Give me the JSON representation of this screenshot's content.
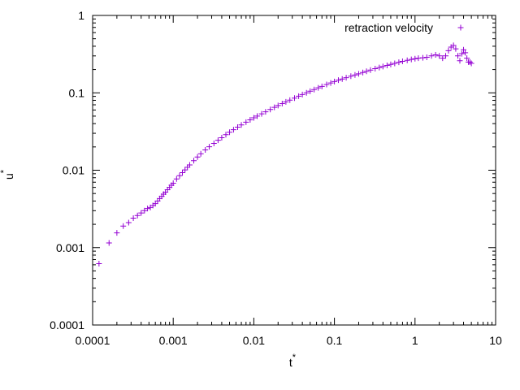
{
  "chart_data": {
    "type": "scatter",
    "title": "",
    "xlabel": "t",
    "xlabel_sup": "*",
    "ylabel": "u",
    "ylabel_sup": "*",
    "xscale": "log",
    "yscale": "log",
    "xlim": [
      0.0001,
      10
    ],
    "ylim": [
      0.0001,
      1
    ],
    "grid": false,
    "legend_position": "top-right",
    "x_ticks": [
      0.0001,
      0.001,
      0.01,
      0.1,
      1,
      10
    ],
    "x_tick_labels": [
      "0.0001",
      "0.001",
      "0.01",
      "0.1",
      "1",
      "10"
    ],
    "y_ticks": [
      0.0001,
      0.001,
      0.01,
      0.1,
      1
    ],
    "y_tick_labels": [
      "0.0001",
      "0.001",
      "0.01",
      "0.1",
      "1"
    ],
    "series": [
      {
        "name": "retraction velocity",
        "color": "#9400d3",
        "marker": "plus",
        "points": [
          [
            0.00012,
            0.00062
          ],
          [
            0.00016,
            0.00115
          ],
          [
            0.0002,
            0.00155
          ],
          [
            0.00024,
            0.0019
          ],
          [
            0.00028,
            0.0021
          ],
          [
            0.00032,
            0.0024
          ],
          [
            0.00036,
            0.0026
          ],
          [
            0.0004,
            0.0028
          ],
          [
            0.00044,
            0.003
          ],
          [
            0.00048,
            0.0032
          ],
          [
            0.00052,
            0.0033
          ],
          [
            0.00056,
            0.0035
          ],
          [
            0.0006,
            0.0037
          ],
          [
            0.00064,
            0.004
          ],
          [
            0.00068,
            0.0043
          ],
          [
            0.00072,
            0.0046
          ],
          [
            0.00076,
            0.0049
          ],
          [
            0.0008,
            0.0052
          ],
          [
            0.00085,
            0.0056
          ],
          [
            0.0009,
            0.006
          ],
          [
            0.00095,
            0.0064
          ],
          [
            0.001,
            0.0068
          ],
          [
            0.0011,
            0.0077
          ],
          [
            0.0012,
            0.0085
          ],
          [
            0.0013,
            0.0093
          ],
          [
            0.0014,
            0.0101
          ],
          [
            0.0015,
            0.0109
          ],
          [
            0.0016,
            0.0117
          ],
          [
            0.0018,
            0.0133
          ],
          [
            0.002,
            0.0148
          ],
          [
            0.0022,
            0.0163
          ],
          [
            0.0025,
            0.0183
          ],
          [
            0.0028,
            0.0201
          ],
          [
            0.0032,
            0.0222
          ],
          [
            0.0036,
            0.0244
          ],
          [
            0.004,
            0.0263
          ],
          [
            0.0045,
            0.0288
          ],
          [
            0.005,
            0.031
          ],
          [
            0.0056,
            0.0334
          ],
          [
            0.0063,
            0.036
          ],
          [
            0.007,
            0.0385
          ],
          [
            0.008,
            0.0418
          ],
          [
            0.009,
            0.0447
          ],
          [
            0.01,
            0.0475
          ],
          [
            0.011,
            0.05
          ],
          [
            0.0125,
            0.0535
          ],
          [
            0.014,
            0.0568
          ],
          [
            0.016,
            0.061
          ],
          [
            0.018,
            0.065
          ],
          [
            0.02,
            0.0685
          ],
          [
            0.0225,
            0.0725
          ],
          [
            0.025,
            0.0765
          ],
          [
            0.028,
            0.0805
          ],
          [
            0.032,
            0.0855
          ],
          [
            0.036,
            0.0905
          ],
          [
            0.04,
            0.095
          ],
          [
            0.045,
            0.1
          ],
          [
            0.05,
            0.105
          ],
          [
            0.056,
            0.11
          ],
          [
            0.063,
            0.116
          ],
          [
            0.07,
            0.121
          ],
          [
            0.08,
            0.128
          ],
          [
            0.09,
            0.134
          ],
          [
            0.1,
            0.14
          ],
          [
            0.112,
            0.146
          ],
          [
            0.125,
            0.151
          ],
          [
            0.14,
            0.157
          ],
          [
            0.16,
            0.164
          ],
          [
            0.18,
            0.17
          ],
          [
            0.2,
            0.176
          ],
          [
            0.225,
            0.183
          ],
          [
            0.25,
            0.19
          ],
          [
            0.28,
            0.197
          ],
          [
            0.32,
            0.205
          ],
          [
            0.36,
            0.212
          ],
          [
            0.4,
            0.219
          ],
          [
            0.45,
            0.226
          ],
          [
            0.5,
            0.233
          ],
          [
            0.56,
            0.24
          ],
          [
            0.63,
            0.248
          ],
          [
            0.7,
            0.255
          ],
          [
            0.8,
            0.263
          ],
          [
            0.9,
            0.27
          ],
          [
            1.0,
            0.276
          ],
          [
            1.1,
            0.28
          ],
          [
            1.25,
            0.284
          ],
          [
            1.4,
            0.288
          ],
          [
            1.6,
            0.3
          ],
          [
            1.8,
            0.31
          ],
          [
            2.0,
            0.3
          ],
          [
            2.2,
            0.28
          ],
          [
            2.4,
            0.3
          ],
          [
            2.6,
            0.35
          ],
          [
            2.8,
            0.39
          ],
          [
            3.0,
            0.41
          ],
          [
            3.2,
            0.37
          ],
          [
            3.4,
            0.3
          ],
          [
            3.6,
            0.26
          ],
          [
            3.8,
            0.32
          ],
          [
            4.0,
            0.36
          ],
          [
            4.2,
            0.33
          ],
          [
            4.4,
            0.28
          ],
          [
            4.6,
            0.25
          ],
          [
            4.8,
            0.25
          ],
          [
            5.0,
            0.24
          ]
        ]
      }
    ]
  }
}
